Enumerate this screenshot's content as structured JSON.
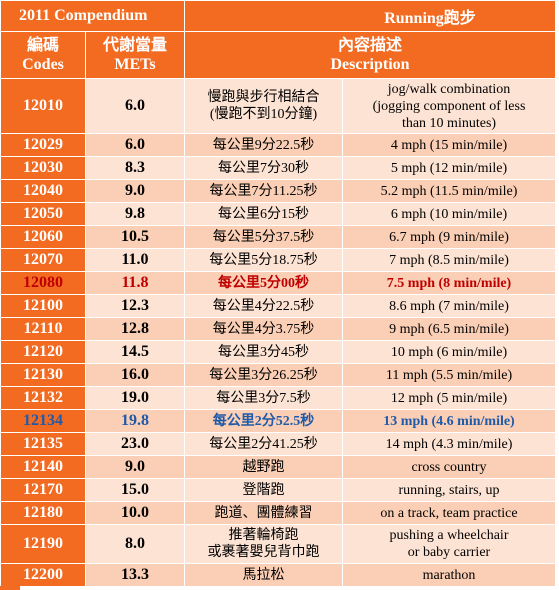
{
  "header": {
    "compendium": "2011 Compendium",
    "activity": "Running跑步",
    "code_zh": "編碼",
    "code_en": "Codes",
    "met_zh": "代謝當量",
    "met_en": "METs",
    "desc_zh": "內容描述",
    "desc_en": "Description"
  },
  "rows": [
    {
      "code": "12010",
      "met": "6.0",
      "zh": "慢跑與步行相結合\n(慢跑不到10分鐘)",
      "en": "jog/walk combination\n(jogging component of less\nthan 10 minutes)"
    },
    {
      "code": "12029",
      "met": "6.0",
      "zh": "每公里9分22.5秒",
      "en": "4 mph (15 min/mile)"
    },
    {
      "code": "12030",
      "met": "8.3",
      "zh": "每公里7分30秒",
      "en": "5 mph (12 min/mile)"
    },
    {
      "code": "12040",
      "met": "9.0",
      "zh": "每公里7分11.25秒",
      "en": "5.2 mph (11.5 min/mile)"
    },
    {
      "code": "12050",
      "met": "9.8",
      "zh": "每公里6分15秒",
      "en": "6 mph (10 min/mile)"
    },
    {
      "code": "12060",
      "met": "10.5",
      "zh": "每公里5分37.5秒",
      "en": "6.7 mph (9 min/mile)"
    },
    {
      "code": "12070",
      "met": "11.0",
      "zh": "每公里5分18.75秒",
      "en": "7 mph (8.5 min/mile)"
    },
    {
      "code": "12080",
      "met": "11.8",
      "zh": "每公里5分00秒",
      "en": "7.5 mph (8 min/mile)"
    },
    {
      "code": "12100",
      "met": "12.3",
      "zh": "每公里4分22.5秒",
      "en": "8.6 mph (7 min/mile)"
    },
    {
      "code": "12110",
      "met": "12.8",
      "zh": "每公里4分3.75秒",
      "en": "9 mph (6.5 min/mile)"
    },
    {
      "code": "12120",
      "met": "14.5",
      "zh": "每公里3分45秒",
      "en": "10 mph (6 min/mile)"
    },
    {
      "code": "12130",
      "met": "16.0",
      "zh": "每公里3分26.25秒",
      "en": "11 mph (5.5 min/mile)"
    },
    {
      "code": "12132",
      "met": "19.0",
      "zh": "每公里3分7.5秒",
      "en": "12 mph (5 min/mile)"
    },
    {
      "code": "12134",
      "met": "19.8",
      "zh": "每公里2分52.5秒",
      "en": "13 mph (4.6 min/mile)"
    },
    {
      "code": "12135",
      "met": "23.0",
      "zh": "每公里2分41.25秒",
      "en": "14 mph (4.3 min/mile)"
    },
    {
      "code": "12140",
      "met": "9.0",
      "zh": "越野跑",
      "en": "cross country"
    },
    {
      "code": "12170",
      "met": "15.0",
      "zh": "登階跑",
      "en": "running, stairs, up"
    },
    {
      "code": "12180",
      "met": "10.0",
      "zh": "跑道、團體練習",
      "en": "on a track, team practice"
    },
    {
      "code": "12190",
      "met": "8.0",
      "zh": "推著輪椅跑\n或裹著嬰兒背巾跑",
      "en": "pushing a wheelchair\nor baby carrier"
    },
    {
      "code": "12200",
      "met": "13.3",
      "zh": "馬拉松",
      "en": "marathon"
    }
  ],
  "highlights": {
    "red_row_code": "12080",
    "blue_row_code": "12134",
    "red_color": "#c00000",
    "blue_color": "#1f5aa8"
  },
  "colors": {
    "header_orange": "#f26b21",
    "row_light": "#fde3d3",
    "row_dark": "#fbcfb5"
  }
}
